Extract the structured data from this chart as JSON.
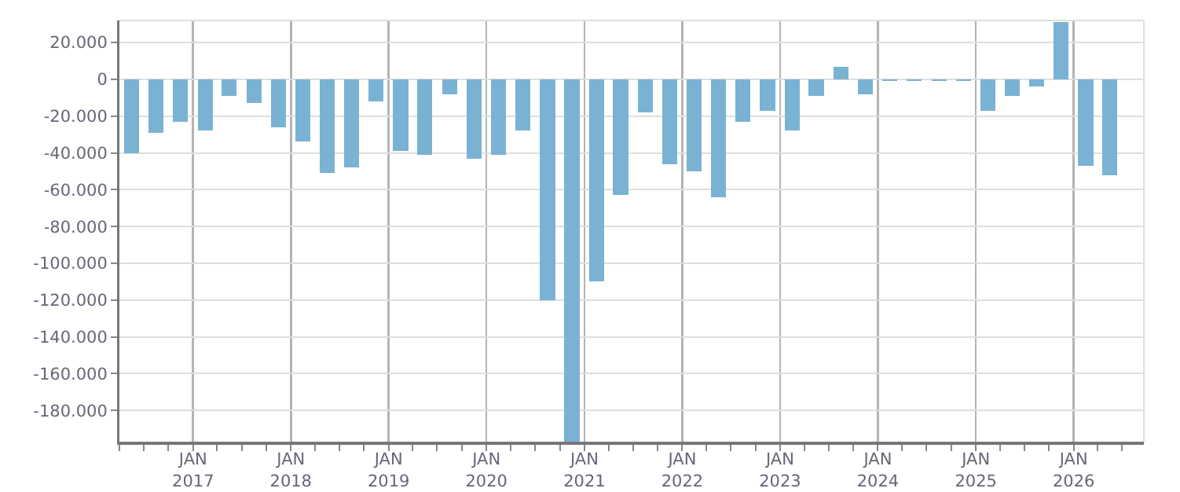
{
  "chart_data": {
    "type": "bar",
    "color": "#7ab2d4",
    "x": [
      "2016-05-16",
      "2016-08-16",
      "2016-11-15",
      "2017-02-15",
      "2017-05-16",
      "2017-08-16",
      "2017-11-15",
      "2018-02-15",
      "2018-05-16",
      "2018-08-16",
      "2018-11-15",
      "2019-02-15",
      "2019-05-16",
      "2019-08-16",
      "2019-11-15",
      "2020-02-15",
      "2020-05-16",
      "2020-08-16",
      "2020-11-15",
      "2021-02-15",
      "2021-05-16",
      "2021-08-16",
      "2021-11-15",
      "2022-02-15",
      "2022-05-16",
      "2022-08-16",
      "2022-11-15",
      "2023-02-15",
      "2023-05-16",
      "2023-08-16",
      "2023-11-15",
      "2024-02-15",
      "2024-05-16",
      "2024-08-16",
      "2024-11-15",
      "2025-02-15",
      "2025-05-16",
      "2025-08-16",
      "2025-11-15",
      "2026-02-15",
      "2026-05-16"
    ],
    "values": [
      -40000,
      -29000,
      -23000,
      -28000,
      -9000,
      -13000,
      -26000,
      -34000,
      -51000,
      -48000,
      -12000,
      -39000,
      -41000,
      -8000,
      -43000,
      -41000,
      -28000,
      -120000,
      -197000,
      -110000,
      -63000,
      -18000,
      -46000,
      -50000,
      -64000,
      -23000,
      -17000,
      -28000,
      -9000,
      7000,
      -8000,
      -1000,
      -1000,
      -1000,
      -1000,
      -17000,
      -9000,
      -4000,
      31000,
      -47000,
      -52000
    ],
    "xlim": [
      "2016-04-01",
      "2026-09-20"
    ],
    "xticks": [
      {
        "value": "2017-01-01",
        "label": "JAN\n2017"
      },
      {
        "value": "2018-01-01",
        "label": "JAN\n2018"
      },
      {
        "value": "2019-01-01",
        "label": "JAN\n2019"
      },
      {
        "value": "2020-01-01",
        "label": "JAN\n2020"
      },
      {
        "value": "2021-01-01",
        "label": "JAN\n2021"
      },
      {
        "value": "2022-01-01",
        "label": "JAN\n2022"
      },
      {
        "value": "2023-01-01",
        "label": "JAN\n2023"
      },
      {
        "value": "2024-01-01",
        "label": "JAN\n2024"
      },
      {
        "value": "2025-01-01",
        "label": "JAN\n2025"
      },
      {
        "value": "2026-01-01",
        "label": "JAN\n2026"
      }
    ],
    "ylim": [
      -197000,
      32000
    ],
    "yticks": [
      {
        "value": 20000,
        "label": "20.000"
      },
      0,
      {
        "value": -20000,
        "label": "-20.000"
      },
      {
        "value": -40000,
        "label": "-40.000"
      },
      {
        "value": -60000,
        "label": "-60.000"
      },
      {
        "value": -80000,
        "label": "-80.000"
      },
      {
        "value": -100000,
        "label": "-100.000"
      },
      {
        "value": -120000,
        "label": "-120.000"
      },
      {
        "value": -140000,
        "label": "-140.000"
      },
      {
        "value": -160000,
        "label": "-160.000"
      },
      {
        "value": -180000,
        "label": "-180.000"
      }
    ],
    "grid": true
  }
}
